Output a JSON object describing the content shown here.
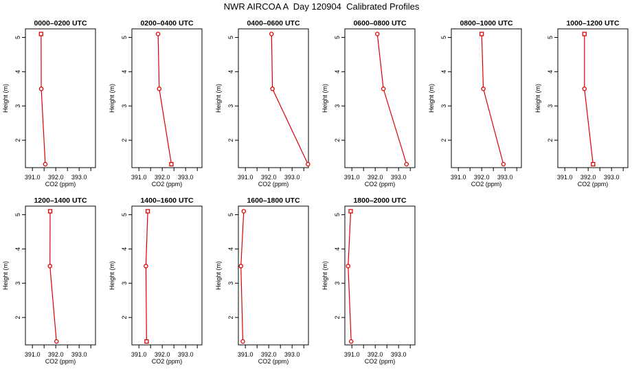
{
  "figure_title": "NWR AIRCOA A  Day 120904  Calibrated Profiles",
  "colors": {
    "series": "#dd0000",
    "axis": "#000000",
    "background": "#ffffff"
  },
  "chart_data": [
    {
      "type": "line",
      "title": "0000–0200 UTC",
      "xlabel": "CO2 (ppm)",
      "ylabel": "Height (m)",
      "xlim": [
        390.7,
        393.7
      ],
      "ylim": [
        1.2,
        5.25
      ],
      "xticks": [
        391.0,
        391.5,
        392.0,
        392.5,
        393.0,
        393.5
      ],
      "xtick_labels": [
        "391.0",
        "",
        "392.0",
        "",
        "393.0",
        ""
      ],
      "yticks": [
        2,
        3,
        4,
        5
      ],
      "ytick_labels": [
        "2",
        "3",
        "4",
        "5"
      ],
      "x": [
        391.37,
        391.38,
        391.55
      ],
      "y": [
        5.1,
        3.5,
        1.3
      ],
      "markers": [
        "square",
        "circle",
        "circle"
      ]
    },
    {
      "type": "line",
      "title": "0200–0400 UTC",
      "xlabel": "CO2 (ppm)",
      "ylabel": "Height (m)",
      "xlim": [
        390.7,
        393.7
      ],
      "ylim": [
        1.2,
        5.25
      ],
      "xticks": [
        391.0,
        391.5,
        392.0,
        392.5,
        393.0,
        393.5
      ],
      "xtick_labels": [
        "391.0",
        "",
        "392.0",
        "",
        "393.0",
        ""
      ],
      "yticks": [
        2,
        3,
        4,
        5
      ],
      "ytick_labels": [
        "2",
        "3",
        "4",
        "5"
      ],
      "x": [
        391.82,
        391.87,
        392.39
      ],
      "y": [
        5.1,
        3.5,
        1.3
      ],
      "markers": [
        "circle",
        "circle",
        "square"
      ]
    },
    {
      "type": "line",
      "title": "0400–0600 UTC",
      "xlabel": "CO2 (ppm)",
      "ylabel": "Height (m)",
      "xlim": [
        390.7,
        393.7
      ],
      "ylim": [
        1.2,
        5.25
      ],
      "xticks": [
        391.0,
        391.5,
        392.0,
        392.5,
        393.0,
        393.5
      ],
      "xtick_labels": [
        "391.0",
        "",
        "392.0",
        "",
        "393.0",
        ""
      ],
      "yticks": [
        2,
        3,
        4,
        5
      ],
      "ytick_labels": [
        "2",
        "3",
        "4",
        "5"
      ],
      "x": [
        392.12,
        392.16,
        393.68
      ],
      "y": [
        5.1,
        3.5,
        1.3
      ],
      "markers": [
        "circle",
        "circle",
        "circle"
      ]
    },
    {
      "type": "line",
      "title": "0600–0800 UTC",
      "xlabel": "CO2 (ppm)",
      "ylabel": "Height (m)",
      "xlim": [
        390.7,
        393.7
      ],
      "ylim": [
        1.2,
        5.25
      ],
      "xticks": [
        391.0,
        391.5,
        392.0,
        392.5,
        393.0,
        393.5
      ],
      "xtick_labels": [
        "391.0",
        "",
        "392.0",
        "",
        "393.0",
        ""
      ],
      "yticks": [
        2,
        3,
        4,
        5
      ],
      "ytick_labels": [
        "2",
        "3",
        "4",
        "5"
      ],
      "x": [
        392.09,
        392.35,
        393.34
      ],
      "y": [
        5.1,
        3.5,
        1.3
      ],
      "markers": [
        "circle",
        "circle",
        "circle"
      ]
    },
    {
      "type": "line",
      "title": "0800–1000 UTC",
      "xlabel": "CO2 (ppm)",
      "ylabel": "Height (m)",
      "xlim": [
        390.7,
        393.7
      ],
      "ylim": [
        1.2,
        5.25
      ],
      "xticks": [
        391.0,
        391.5,
        392.0,
        392.5,
        393.0,
        393.5
      ],
      "xtick_labels": [
        "391.0",
        "",
        "392.0",
        "",
        "393.0",
        ""
      ],
      "yticks": [
        2,
        3,
        4,
        5
      ],
      "ytick_labels": [
        "2",
        "3",
        "4",
        "5"
      ],
      "x": [
        392.0,
        392.07,
        392.93
      ],
      "y": [
        5.1,
        3.5,
        1.3
      ],
      "markers": [
        "square",
        "circle",
        "circle"
      ]
    },
    {
      "type": "line",
      "title": "1000–1200 UTC",
      "xlabel": "CO2 (ppm)",
      "ylabel": "Height (m)",
      "xlim": [
        390.7,
        393.7
      ],
      "ylim": [
        1.2,
        5.25
      ],
      "xticks": [
        391.0,
        391.5,
        392.0,
        392.5,
        393.0,
        393.5
      ],
      "xtick_labels": [
        "391.0",
        "",
        "392.0",
        "",
        "393.0",
        ""
      ],
      "yticks": [
        2,
        3,
        4,
        5
      ],
      "ytick_labels": [
        "2",
        "3",
        "4",
        "5"
      ],
      "x": [
        391.84,
        391.84,
        392.21
      ],
      "y": [
        5.1,
        3.5,
        1.3
      ],
      "markers": [
        "square",
        "circle",
        "square"
      ]
    },
    {
      "type": "line",
      "title": "1200–1400 UTC",
      "xlabel": "CO2 (ppm)",
      "ylabel": "Height (m)",
      "xlim": [
        390.7,
        393.7
      ],
      "ylim": [
        1.2,
        5.25
      ],
      "xticks": [
        391.0,
        391.5,
        392.0,
        392.5,
        393.0,
        393.5
      ],
      "xtick_labels": [
        "391.0",
        "",
        "392.0",
        "",
        "393.0",
        ""
      ],
      "yticks": [
        2,
        3,
        4,
        5
      ],
      "ytick_labels": [
        "2",
        "3",
        "4",
        "5"
      ],
      "x": [
        391.76,
        391.75,
        392.03
      ],
      "y": [
        5.1,
        3.5,
        1.3
      ],
      "markers": [
        "square",
        "circle",
        "circle"
      ]
    },
    {
      "type": "line",
      "title": "1400–1600 UTC",
      "xlabel": "CO2 (ppm)",
      "ylabel": "Height (m)",
      "xlim": [
        390.7,
        393.7
      ],
      "ylim": [
        1.2,
        5.25
      ],
      "xticks": [
        391.0,
        391.5,
        392.0,
        392.5,
        393.0,
        393.5
      ],
      "xtick_labels": [
        "391.0",
        "",
        "392.0",
        "",
        "393.0",
        ""
      ],
      "yticks": [
        2,
        3,
        4,
        5
      ],
      "ytick_labels": [
        "2",
        "3",
        "4",
        "5"
      ],
      "x": [
        391.38,
        391.3,
        391.33
      ],
      "y": [
        5.1,
        3.5,
        1.3
      ],
      "markers": [
        "square",
        "circle",
        "square"
      ]
    },
    {
      "type": "line",
      "title": "1600–1800 UTC",
      "xlabel": "CO2 (ppm)",
      "ylabel": "Height (m)",
      "xlim": [
        390.7,
        393.7
      ],
      "ylim": [
        1.2,
        5.25
      ],
      "xticks": [
        391.0,
        391.5,
        392.0,
        392.5,
        393.0,
        393.5
      ],
      "xtick_labels": [
        "391.0",
        "",
        "392.0",
        "",
        "393.0",
        ""
      ],
      "yticks": [
        2,
        3,
        4,
        5
      ],
      "ytick_labels": [
        "2",
        "3",
        "4",
        "5"
      ],
      "x": [
        390.93,
        390.81,
        390.89
      ],
      "y": [
        5.1,
        3.5,
        1.3
      ],
      "markers": [
        "circle",
        "circle",
        "circle"
      ]
    },
    {
      "type": "line",
      "title": "1800–2000 UTC",
      "xlabel": "CO2 (ppm)",
      "ylabel": "Height (m)",
      "xlim": [
        390.7,
        393.7
      ],
      "ylim": [
        1.2,
        5.25
      ],
      "xticks": [
        391.0,
        391.5,
        392.0,
        392.5,
        393.0,
        393.5
      ],
      "xtick_labels": [
        "391.0",
        "",
        "392.0",
        "",
        "393.0",
        ""
      ],
      "yticks": [
        2,
        3,
        4,
        5
      ],
      "ytick_labels": [
        "2",
        "3",
        "4",
        "5"
      ],
      "x": [
        390.95,
        390.84,
        390.97
      ],
      "y": [
        5.1,
        3.5,
        1.3
      ],
      "markers": [
        "square",
        "circle",
        "circle"
      ]
    }
  ]
}
